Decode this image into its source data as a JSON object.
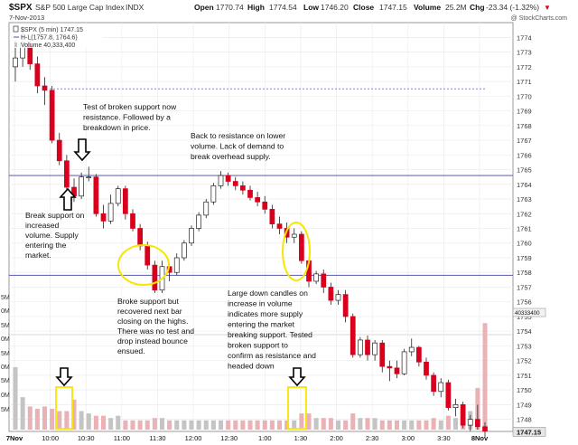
{
  "header": {
    "symbol": "$SPX",
    "name": "S&P 500 Large Cap Index",
    "exchange": "INDX",
    "date": "7-Nov-2013",
    "open_label": "Open",
    "open": "1770.74",
    "high_label": "High",
    "high": "1774.54",
    "low_label": "Low",
    "low": "1746.20",
    "close_label": "Close",
    "close": "1747.15",
    "volume_label": "Volume",
    "volume": "25.2M",
    "chg_label": "Chg",
    "chg": "-23.34 (-1.32%)",
    "chg_arrow": "▼",
    "watermark": "@ StockCharts.com"
  },
  "legend": {
    "price": "$SPX (5 min) 1747.15",
    "hl": "H-L(1757.8, 1764.6)",
    "volume": "Volume 40,333,400"
  },
  "colors": {
    "up": "#ffffff",
    "down": "#d9001d",
    "level_line": "#6c6cb8",
    "circle": "#f7e600",
    "vol_down": "#e8b2b6",
    "vol_up": "#c4c4c4",
    "dashed": "#8e6ac8"
  },
  "chart_data": {
    "type": "candlestick",
    "x_tick_labels": [
      "7Nov",
      "10:00",
      "10:30",
      "11:00",
      "11:30",
      "12:00",
      "12:30",
      "1:00",
      "1:30",
      "2:00",
      "2:30",
      "3:00",
      "3:30",
      "8Nov"
    ],
    "y_tick_labels": [
      "1774",
      "1773",
      "1772",
      "1771",
      "1770",
      "1769",
      "1768",
      "1767",
      "1766",
      "1765",
      "1764",
      "1763",
      "1762",
      "1761",
      "1760",
      "1759",
      "1758",
      "1757",
      "1756",
      "1755",
      "1754",
      "1753",
      "1752",
      "1751",
      "1750",
      "1749",
      "1748"
    ],
    "ylim": [
      1747.3,
      1774.7
    ],
    "volume_axis_labels": [
      "5M",
      "0M",
      "5M",
      "0M",
      "5M",
      "0M",
      "5M",
      "0M",
      "5M"
    ],
    "resistance_level": 1764.6,
    "support_level": 1757.8,
    "prior_close": 1770.5,
    "last_price_label": "1747.15",
    "last_volume_label": "40333400",
    "candles": [
      {
        "o": 1772.0,
        "h": 1773.8,
        "l": 1771.0,
        "c": 1772.6,
        "v": 27
      },
      {
        "o": 1772.6,
        "h": 1774.5,
        "l": 1772.0,
        "c": 1773.6,
        "v": 14
      },
      {
        "o": 1773.6,
        "h": 1773.9,
        "l": 1771.8,
        "c": 1772.2,
        "v": 10
      },
      {
        "o": 1772.2,
        "h": 1772.7,
        "l": 1770.2,
        "c": 1770.7,
        "v": 9
      },
      {
        "o": 1770.7,
        "h": 1771.3,
        "l": 1769.4,
        "c": 1770.4,
        "v": 10
      },
      {
        "o": 1770.4,
        "h": 1770.7,
        "l": 1766.8,
        "c": 1767.0,
        "v": 9
      },
      {
        "o": 1767.0,
        "h": 1767.5,
        "l": 1765.3,
        "c": 1765.6,
        "v": 8
      },
      {
        "o": 1765.6,
        "h": 1766.0,
        "l": 1763.6,
        "c": 1763.8,
        "v": 8
      },
      {
        "o": 1763.8,
        "h": 1764.4,
        "l": 1762.8,
        "c": 1763.2,
        "v": 13
      },
      {
        "o": 1763.2,
        "h": 1764.8,
        "l": 1763.0,
        "c": 1764.5,
        "v": 8
      },
      {
        "o": 1764.5,
        "h": 1765.2,
        "l": 1764.2,
        "c": 1764.5,
        "v": 7
      },
      {
        "o": 1764.5,
        "h": 1764.7,
        "l": 1761.8,
        "c": 1762.0,
        "v": 6
      },
      {
        "o": 1762.0,
        "h": 1762.6,
        "l": 1761.0,
        "c": 1761.5,
        "v": 6
      },
      {
        "o": 1761.5,
        "h": 1763.3,
        "l": 1761.3,
        "c": 1762.7,
        "v": 5
      },
      {
        "o": 1762.7,
        "h": 1763.9,
        "l": 1762.5,
        "c": 1763.7,
        "v": 6
      },
      {
        "o": 1763.7,
        "h": 1763.9,
        "l": 1761.6,
        "c": 1762.0,
        "v": 4
      },
      {
        "o": 1762.0,
        "h": 1762.3,
        "l": 1760.8,
        "c": 1761.0,
        "v": 4
      },
      {
        "o": 1761.0,
        "h": 1761.3,
        "l": 1759.5,
        "c": 1759.8,
        "v": 4
      },
      {
        "o": 1759.8,
        "h": 1760.1,
        "l": 1758.2,
        "c": 1758.5,
        "v": 4
      },
      {
        "o": 1758.5,
        "h": 1758.8,
        "l": 1756.6,
        "c": 1756.8,
        "v": 5
      },
      {
        "o": 1756.8,
        "h": 1758.8,
        "l": 1756.6,
        "c": 1758.4,
        "v": 5
      },
      {
        "o": 1758.4,
        "h": 1758.6,
        "l": 1757.4,
        "c": 1758.0,
        "v": 4
      },
      {
        "o": 1758.0,
        "h": 1759.3,
        "l": 1757.8,
        "c": 1759.0,
        "v": 4
      },
      {
        "o": 1759.0,
        "h": 1760.2,
        "l": 1758.8,
        "c": 1760.0,
        "v": 4
      },
      {
        "o": 1760.0,
        "h": 1761.2,
        "l": 1759.8,
        "c": 1761.0,
        "v": 4
      },
      {
        "o": 1761.0,
        "h": 1762.1,
        "l": 1760.8,
        "c": 1761.9,
        "v": 4
      },
      {
        "o": 1761.9,
        "h": 1763.0,
        "l": 1761.7,
        "c": 1762.8,
        "v": 4
      },
      {
        "o": 1762.8,
        "h": 1764.1,
        "l": 1762.6,
        "c": 1763.9,
        "v": 4
      },
      {
        "o": 1763.9,
        "h": 1764.9,
        "l": 1763.7,
        "c": 1764.6,
        "v": 4
      },
      {
        "o": 1764.6,
        "h": 1764.8,
        "l": 1763.9,
        "c": 1764.2,
        "v": 4
      },
      {
        "o": 1764.2,
        "h": 1764.5,
        "l": 1763.6,
        "c": 1763.9,
        "v": 4
      },
      {
        "o": 1763.9,
        "h": 1764.2,
        "l": 1763.3,
        "c": 1763.6,
        "v": 4
      },
      {
        "o": 1763.6,
        "h": 1763.9,
        "l": 1762.9,
        "c": 1763.1,
        "v": 4
      },
      {
        "o": 1763.1,
        "h": 1763.5,
        "l": 1762.5,
        "c": 1762.8,
        "v": 4
      },
      {
        "o": 1762.8,
        "h": 1763.2,
        "l": 1762.0,
        "c": 1762.3,
        "v": 4
      },
      {
        "o": 1762.3,
        "h": 1762.6,
        "l": 1761.0,
        "c": 1761.3,
        "v": 4
      },
      {
        "o": 1761.3,
        "h": 1761.8,
        "l": 1760.6,
        "c": 1761.0,
        "v": 4
      },
      {
        "o": 1761.0,
        "h": 1761.4,
        "l": 1760.0,
        "c": 1760.4,
        "v": 4
      },
      {
        "o": 1760.4,
        "h": 1761.0,
        "l": 1760.0,
        "c": 1760.6,
        "v": 4
      },
      {
        "o": 1760.6,
        "h": 1760.8,
        "l": 1758.6,
        "c": 1758.8,
        "v": 7
      },
      {
        "o": 1758.8,
        "h": 1759.0,
        "l": 1757.0,
        "c": 1757.4,
        "v": 7
      },
      {
        "o": 1757.4,
        "h": 1758.1,
        "l": 1757.2,
        "c": 1757.9,
        "v": 5
      },
      {
        "o": 1757.9,
        "h": 1758.2,
        "l": 1756.6,
        "c": 1757.0,
        "v": 5
      },
      {
        "o": 1757.0,
        "h": 1757.3,
        "l": 1755.8,
        "c": 1756.1,
        "v": 5
      },
      {
        "o": 1756.1,
        "h": 1756.8,
        "l": 1755.8,
        "c": 1756.5,
        "v": 4
      },
      {
        "o": 1756.5,
        "h": 1756.8,
        "l": 1754.6,
        "c": 1755.0,
        "v": 4
      },
      {
        "o": 1755.0,
        "h": 1755.2,
        "l": 1752.2,
        "c": 1752.4,
        "v": 7
      },
      {
        "o": 1752.4,
        "h": 1753.6,
        "l": 1752.2,
        "c": 1753.4,
        "v": 5
      },
      {
        "o": 1753.4,
        "h": 1753.7,
        "l": 1752.0,
        "c": 1752.4,
        "v": 5
      },
      {
        "o": 1752.4,
        "h": 1753.4,
        "l": 1752.0,
        "c": 1753.2,
        "v": 5
      },
      {
        "o": 1753.2,
        "h": 1753.4,
        "l": 1751.2,
        "c": 1751.6,
        "v": 4
      },
      {
        "o": 1751.6,
        "h": 1752.0,
        "l": 1750.6,
        "c": 1751.5,
        "v": 4
      },
      {
        "o": 1751.5,
        "h": 1752.0,
        "l": 1750.8,
        "c": 1751.1,
        "v": 4
      },
      {
        "o": 1751.1,
        "h": 1752.8,
        "l": 1751.0,
        "c": 1752.6,
        "v": 4
      },
      {
        "o": 1752.6,
        "h": 1753.5,
        "l": 1752.3,
        "c": 1752.9,
        "v": 4
      },
      {
        "o": 1752.9,
        "h": 1753.0,
        "l": 1751.6,
        "c": 1751.9,
        "v": 4
      },
      {
        "o": 1751.9,
        "h": 1752.2,
        "l": 1750.7,
        "c": 1751.0,
        "v": 4
      },
      {
        "o": 1751.0,
        "h": 1751.2,
        "l": 1749.6,
        "c": 1749.9,
        "v": 5
      },
      {
        "o": 1749.9,
        "h": 1750.8,
        "l": 1749.5,
        "c": 1750.5,
        "v": 4
      },
      {
        "o": 1750.5,
        "h": 1750.7,
        "l": 1748.6,
        "c": 1748.8,
        "v": 6
      },
      {
        "o": 1748.8,
        "h": 1749.4,
        "l": 1748.2,
        "c": 1749.0,
        "v": 5
      },
      {
        "o": 1749.0,
        "h": 1749.2,
        "l": 1747.4,
        "c": 1747.6,
        "v": 7
      },
      {
        "o": 1747.6,
        "h": 1748.3,
        "l": 1747.2,
        "c": 1748.0,
        "v": 8
      },
      {
        "o": 1748.0,
        "h": 1749.0,
        "l": 1747.3,
        "c": 1747.5,
        "v": 18
      },
      {
        "o": 1747.5,
        "h": 1747.8,
        "l": 1746.8,
        "c": 1747.2,
        "v": 46
      }
    ]
  },
  "annotations": {
    "test_broken_support": [
      "Test of broken support now",
      "resistance.  Followed by a",
      "breakdown in price."
    ],
    "back_to_resistance": [
      "Back to resistance on lower",
      "volume.  Lack of demand to",
      "break overhead supply."
    ],
    "break_support": [
      "Break support on",
      "increased",
      "volume. Supply",
      "entering the",
      "market."
    ],
    "broke_support_recovered": [
      "Broke support but",
      "recovered next bar",
      "closing on the highs.",
      "There was no test and",
      "drop instead bounce",
      "ensued."
    ],
    "large_down_candles": [
      "Large down candles on",
      "increase in volume",
      "indicates more supply",
      "entering the market",
      "breaking support. Tested",
      "broken support to",
      "confirm as resistance and",
      "headed down"
    ]
  }
}
